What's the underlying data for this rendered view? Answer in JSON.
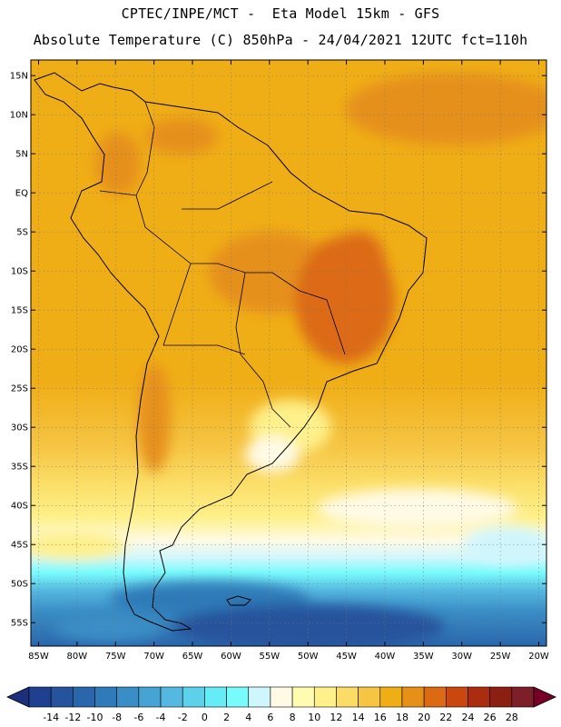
{
  "header": {
    "line1": "CPTEC/INPE/MCT -  Eta Model 15km - GFS",
    "line2": "Absolute Temperature (C) 850hPa - 24/04/2021 12UTC fct=110h"
  },
  "map": {
    "lon_range": [
      -86,
      -19
    ],
    "lat_range": [
      -58,
      17
    ],
    "lat_labels": [
      "15N",
      "10N",
      "5N",
      "EQ",
      "5S",
      "10S",
      "15S",
      "20S",
      "25S",
      "30S",
      "35S",
      "40S",
      "45S",
      "50S",
      "55S"
    ],
    "lat_values": [
      15,
      10,
      5,
      0,
      -5,
      -10,
      -15,
      -20,
      -25,
      -30,
      -35,
      -40,
      -45,
      -50,
      -55
    ],
    "lon_labels": [
      "85W",
      "80W",
      "75W",
      "70W",
      "65W",
      "60W",
      "55W",
      "50W",
      "45W",
      "40W",
      "35W",
      "30W",
      "25W",
      "20W"
    ],
    "lon_values": [
      -85,
      -80,
      -75,
      -70,
      -65,
      -60,
      -55,
      -50,
      -45,
      -40,
      -35,
      -30,
      -25,
      -20
    ]
  },
  "colorbar": {
    "labels": [
      "-14",
      "-12",
      "-10",
      "-8",
      "-6",
      "-4",
      "-2",
      "0",
      "2",
      "4",
      "6",
      "8",
      "10",
      "12",
      "14",
      "16",
      "18",
      "20",
      "22",
      "24",
      "26",
      "28"
    ],
    "colors": [
      "#1f3f8f",
      "#25539c",
      "#2a66ab",
      "#2f7ab8",
      "#3a8ec6",
      "#46a3d4",
      "#55b8e0",
      "#5dd0ea",
      "#66ecf4",
      "#78fbfb",
      "#cff6fd",
      "#fffae5",
      "#fffbb0",
      "#fef08a",
      "#fbdd66",
      "#f6c544",
      "#f0ae16",
      "#e6901a",
      "#dc6a12",
      "#c8480f",
      "#aa2d10",
      "#8a1f12",
      "#7c1f28"
    ],
    "left_cap_color": "#1e2f7a",
    "right_cap_color": "#760025"
  }
}
